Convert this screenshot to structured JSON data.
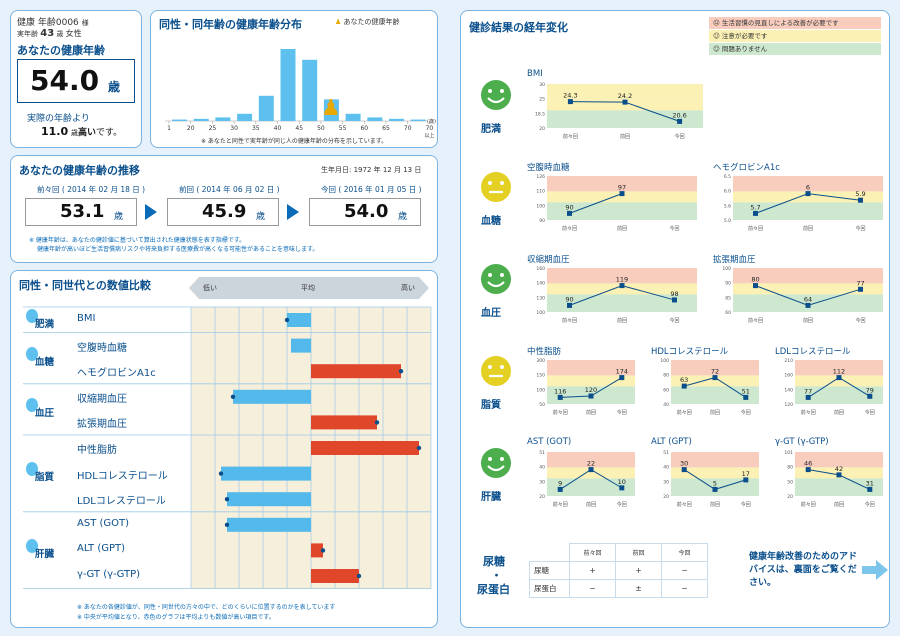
{
  "profile": {
    "id": "健康 年齢0006",
    "honorific": "様",
    "age_label": "実年齢",
    "age": "43",
    "age_unit": "歳",
    "sex": "女性"
  },
  "health_age": {
    "title": "あなたの健康年齢",
    "value": "54.0",
    "unit": "歳",
    "diff_pre": "実際の年齢より",
    "diff": "11.0",
    "diff_unit": "歳",
    "diff_post": "高い",
    "diff_tail": "です。"
  },
  "dist": {
    "title": "同性・同年齢の健康年齢分布",
    "legend": "あなたの健康年齢",
    "ticks": [
      "1",
      "20",
      "25",
      "30",
      "35",
      "40",
      "45",
      "50",
      "55",
      "60",
      "65",
      "70",
      "70"
    ],
    "last_tick": "以上",
    "unit": "(歳)",
    "note": "※ あなたと同性で実年齢が同じ人の健康年齢の分布を示しています。",
    "values": [
      0.02,
      0.03,
      0.05,
      0.1,
      0.35,
      1.0,
      0.85,
      0.3,
      0.1,
      0.05,
      0.03,
      0.02
    ]
  },
  "trend": {
    "title": "あなたの健康年齢の推移",
    "birth_label": "生年月日:",
    "birth": "1972 年 12 月 13 日",
    "items": [
      {
        "label": "前々回 ( 2014 年 02 月 18 日 )",
        "value": "53.1",
        "unit": "歳"
      },
      {
        "label": "前回 ( 2014 年 06 月 02 日 )",
        "value": "45.9",
        "unit": "歳"
      },
      {
        "label": "今回 ( 2016 年 01 月 05 日 )",
        "value": "54.0",
        "unit": "歳"
      }
    ],
    "note1": "※ 健康年齢は、あなたの健診値に基づいて算出された健康状態を表す指標です。",
    "note2": "健康年齢が高いほど生活習慣病リスクや将来負担する医療費が高くなる可能性があることを意味します。"
  },
  "compare": {
    "title": "同性・同世代との数値比較",
    "scale_low": "低い",
    "scale_avg": "平均",
    "scale_high": "高い",
    "groups": [
      {
        "name": "肥満",
        "items": [
          "BMI"
        ]
      },
      {
        "name": "血糖",
        "items": [
          "空腹時血糖",
          "ヘモグロビンA1c"
        ]
      },
      {
        "name": "血圧",
        "items": [
          "収縮期血圧",
          "拡張期血圧"
        ]
      },
      {
        "name": "脂質",
        "items": [
          "中性脂肪",
          "HDLコレステロール",
          "LDLコレステロール"
        ]
      },
      {
        "name": "肝臓",
        "items": [
          "AST (GOT)",
          "ALT (GPT)",
          "γ-GT (γ-GTP)"
        ]
      }
    ],
    "bars": [
      -0.2,
      0,
      0.75,
      -0.65,
      0.55,
      0.9,
      -0.75,
      -0.7,
      -0.7,
      0.1,
      0.4
    ],
    "note1": "※ あなたの各健診値が、同性・同世代の方々の中で、どのくらいに位置するのかを表しています",
    "note2": "※ 中央が平均値となり、赤色のグラフは平均よりも数値が高い項目です。"
  },
  "history": {
    "title": "健診結果の経年変化",
    "legend": [
      "生活習慣の見直しによる改善が必要です",
      "注意が必要です",
      "問題ありません"
    ],
    "colors": {
      "red": "#f9cdbd",
      "yellow": "#fbf1b5",
      "green": "#cde8cf"
    },
    "xlabels": [
      "前々回",
      "前回",
      "今回"
    ],
    "cats": [
      {
        "name": "肥満",
        "face": "green"
      },
      {
        "name": "血糖",
        "face": "yellow"
      },
      {
        "name": "血圧",
        "face": "green"
      },
      {
        "name": "脂質",
        "face": "yellow"
      },
      {
        "name": "肝臓",
        "face": "green"
      }
    ],
    "charts": [
      {
        "name": "BMI",
        "values": [
          24.3,
          24.2,
          20.6
        ],
        "ticks": [
          "30",
          "25",
          "18.5",
          "20"
        ]
      },
      {
        "name": "空腹時血糖",
        "values": [
          90,
          97,
          null
        ],
        "ticks": [
          "126",
          "110",
          "100",
          "90"
        ]
      },
      {
        "name": "ヘモグロビンA1c",
        "values": [
          5.7,
          6,
          5.9
        ],
        "ticks": [
          "6.5",
          "6.0",
          "5.6",
          "5.0"
        ]
      },
      {
        "name": "収縮期血圧",
        "values": [
          90,
          119,
          98
        ],
        "ticks": [
          "160",
          "140",
          "130",
          "100"
        ]
      },
      {
        "name": "拡張期血圧",
        "values": [
          80,
          64,
          77
        ],
        "ticks": [
          "100",
          "90",
          "85",
          "60"
        ]
      },
      {
        "name": "中性脂肪",
        "values": [
          116,
          120,
          174
        ],
        "ticks": [
          "300",
          "150",
          "100",
          "50"
        ]
      },
      {
        "name": "HDLコレステロール",
        "values": [
          63,
          72,
          51
        ],
        "ticks": [
          "100",
          "80",
          "60",
          "40"
        ]
      },
      {
        "name": "LDLコレステロール",
        "values": [
          77,
          112,
          79
        ],
        "ticks": [
          "210",
          "160",
          "140",
          "120"
        ]
      },
      {
        "name": "AST (GOT)",
        "values": [
          9,
          22,
          10
        ],
        "ticks": [
          "51",
          "40",
          "30",
          "20"
        ]
      },
      {
        "name": "ALT (GPT)",
        "values": [
          30,
          5,
          17
        ],
        "ticks": [
          "51",
          "40",
          "30",
          "20"
        ]
      },
      {
        "name": "γ-GT (γ-GTP)",
        "values": [
          46,
          42,
          31
        ],
        "ticks": [
          "101",
          "80",
          "50",
          "20"
        ]
      }
    ],
    "urine": {
      "label1": "尿糖",
      "dot": "・",
      "label2": "尿蛋白",
      "cols": [
        "前々回",
        "前回",
        "今回"
      ],
      "rows": [
        {
          "name": "尿糖",
          "v": [
            "+",
            "+",
            "−"
          ]
        },
        {
          "name": "尿蛋白",
          "v": [
            "−",
            "±",
            "−"
          ]
        }
      ]
    },
    "advice": "健康年齢改善のためのアドバイスは、裏面をご覧ください。"
  }
}
